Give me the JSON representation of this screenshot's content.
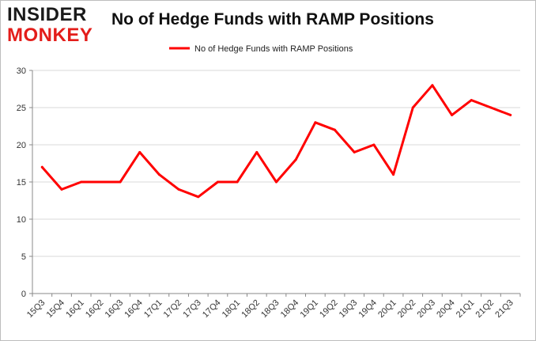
{
  "logo": {
    "top": "INSIDER",
    "bottom": "MONKEY"
  },
  "chart_data": {
    "type": "line",
    "title": "No of Hedge Funds with RAMP Positions",
    "categories": [
      "15Q3",
      "15Q4",
      "16Q1",
      "16Q2",
      "16Q3",
      "16Q4",
      "17Q1",
      "17Q2",
      "17Q3",
      "17Q4",
      "18Q1",
      "18Q2",
      "18Q3",
      "18Q4",
      "19Q1",
      "19Q2",
      "19Q3",
      "19Q4",
      "20Q1",
      "20Q2",
      "20Q3",
      "20Q4",
      "21Q1",
      "21Q2",
      "21Q3"
    ],
    "series": [
      {
        "name": "No of Hedge Funds with RAMP Positions",
        "color": "#ff0000",
        "values": [
          17,
          14,
          15,
          15,
          15,
          19,
          16,
          14,
          13,
          15,
          15,
          19,
          15,
          18,
          23,
          22,
          19,
          20,
          16,
          25,
          28,
          24,
          26,
          25,
          24
        ]
      }
    ],
    "ylim": [
      0,
      30
    ],
    "yticks": [
      0,
      5,
      10,
      15,
      20,
      25,
      30
    ],
    "grid": true,
    "legend": "top-center",
    "xlabel": "",
    "ylabel": ""
  }
}
